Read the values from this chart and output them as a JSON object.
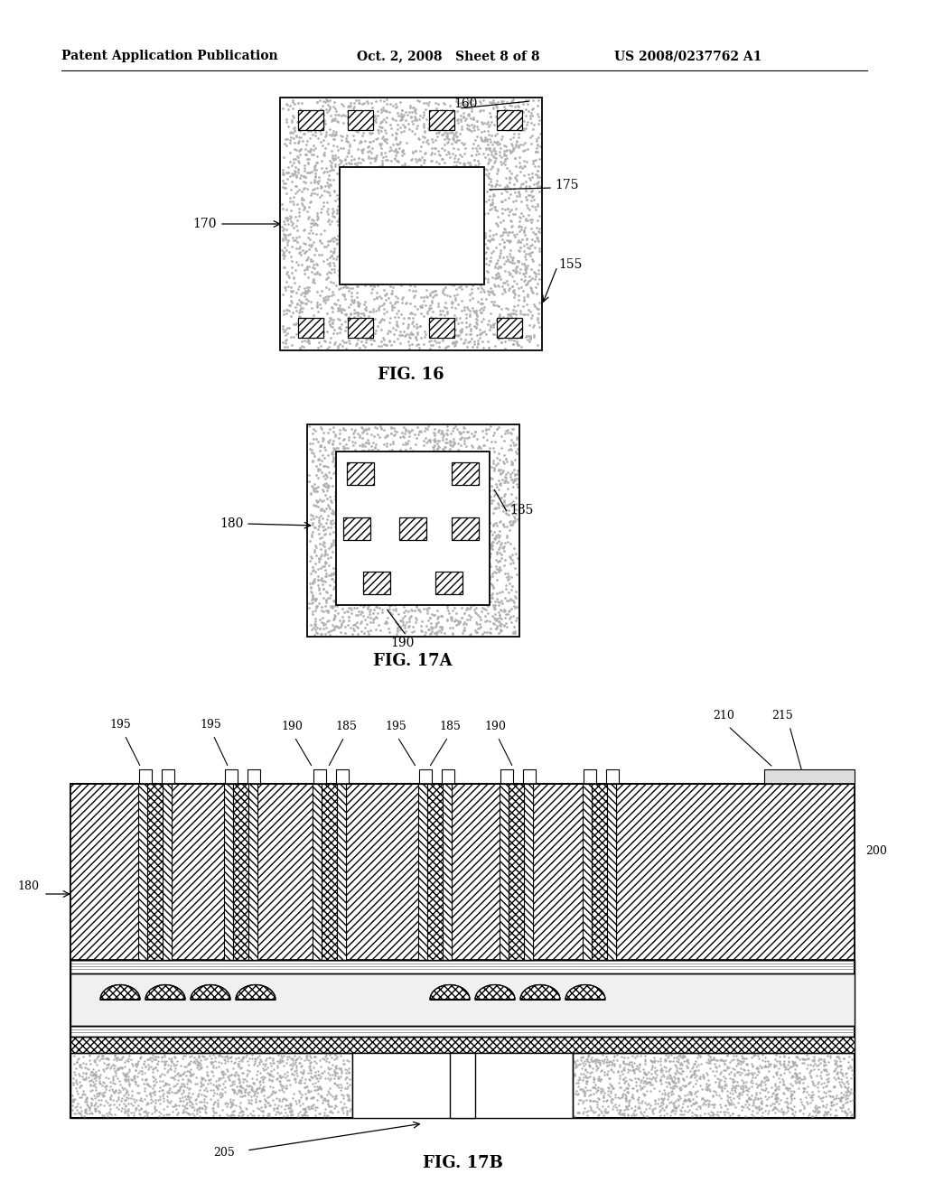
{
  "header_left": "Patent Application Publication",
  "header_mid": "Oct. 2, 2008   Sheet 8 of 8",
  "header_right": "US 2008/0237762 A1",
  "fig16_label": "FIG. 16",
  "fig17a_label": "FIG. 17A",
  "fig17b_label": "FIG. 17B",
  "bg_color": "#ffffff"
}
